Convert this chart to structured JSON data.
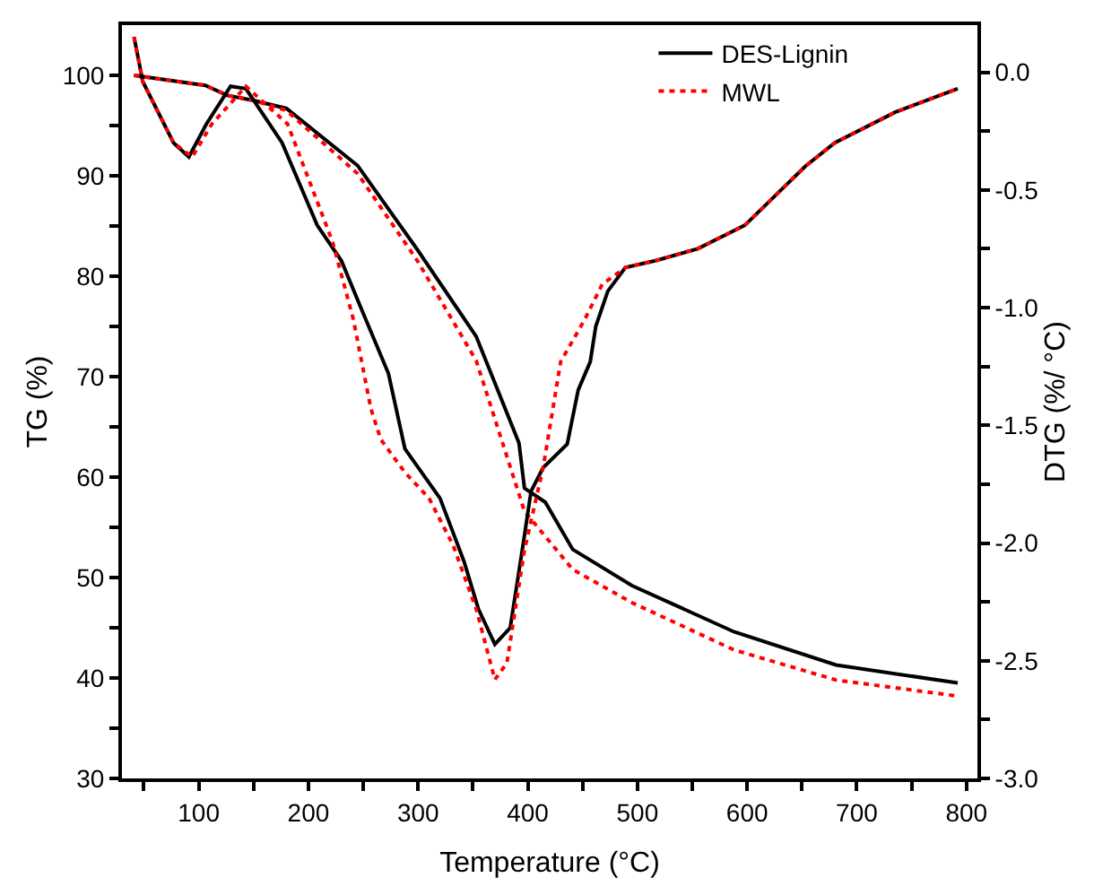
{
  "chart_data": {
    "type": "line",
    "xlabel": "Temperature (°C)",
    "ylabel": "TG (%)",
    "y2label": "DTG (%/ °C)",
    "xlim": [
      30,
      810
    ],
    "ylim": [
      30,
      105
    ],
    "y2lim": [
      -3.0,
      0.2
    ],
    "xticks": [
      {
        "value": 50,
        "label": null
      },
      100,
      {
        "value": 150,
        "label": null
      },
      200,
      {
        "value": 250,
        "label": null
      },
      300,
      {
        "value": 350,
        "label": null
      },
      400,
      {
        "value": 450,
        "label": null
      },
      500,
      {
        "value": 550,
        "label": null
      },
      600,
      {
        "value": 650,
        "label": null
      },
      700,
      {
        "value": 750,
        "label": null
      },
      800
    ],
    "yticks": [
      30,
      {
        "value": 35,
        "label": null
      },
      40,
      {
        "value": 45,
        "label": null
      },
      50,
      {
        "value": 55,
        "label": null
      },
      60,
      {
        "value": 65,
        "label": null
      },
      70,
      {
        "value": 75,
        "label": null
      },
      80,
      {
        "value": 85,
        "label": null
      },
      90,
      {
        "value": 95,
        "label": null
      },
      100
    ],
    "y2ticks": [
      {
        "value": -3.0,
        "label": "-3.0"
      },
      {
        "value": -2.75,
        "label": null
      },
      {
        "value": -2.5,
        "label": "-2.5"
      },
      {
        "value": -2.25,
        "label": null
      },
      {
        "value": -2.0,
        "label": "-2.0"
      },
      {
        "value": -1.75,
        "label": null
      },
      {
        "value": -1.5,
        "label": "-1.5"
      },
      {
        "value": -1.25,
        "label": null
      },
      {
        "value": -1.0,
        "label": "-1.0"
      },
      {
        "value": -0.75,
        "label": null
      },
      {
        "value": -0.5,
        "label": "-0.5"
      },
      {
        "value": -0.25,
        "label": null
      },
      {
        "value": 0.0,
        "label": "0.0"
      }
    ],
    "legend": "top right",
    "marker": "none",
    "series": [
      {
        "name": "DES-Lignin",
        "color": "#000000",
        "line_style": "solid",
        "x": [
          41,
          106,
          126,
          150,
          180,
          245,
          299,
          353,
          392,
          397,
          416,
          441,
          495,
          588,
          681,
          792
        ],
        "values": [
          100,
          99,
          98,
          97.5,
          96.7,
          91,
          82.7,
          74,
          63.4,
          58.9,
          57.5,
          52.8,
          49.2,
          44.6,
          41.3,
          39.5
        ]
      },
      {
        "name": "MWL",
        "color": "#ff0000",
        "line_style": "dotted",
        "x": [
          41,
          106,
          126,
          150,
          180,
          245,
          299,
          353,
          397,
          441,
          495,
          588,
          681,
          792
        ],
        "values": [
          100,
          99,
          98,
          97.5,
          96.5,
          90.2,
          81.6,
          71.6,
          56.6,
          50.8,
          47.5,
          42.8,
          39.8,
          38.2
        ]
      },
      {
        "color": "#000000",
        "line_style": "solid",
        "axis": "y2",
        "x": [
          41,
          49,
          77,
          91,
          107,
          129,
          143,
          176,
          208,
          230,
          246,
          273,
          288,
          320,
          342,
          355,
          370,
          384,
          395,
          403,
          414,
          436,
          446,
          457,
          462,
          473,
          489,
          517,
          555,
          598,
          620,
          653,
          680,
          735,
          792
        ],
        "values": [
          0.15,
          -0.04,
          -0.3,
          -0.36,
          -0.22,
          -0.06,
          -0.07,
          -0.3,
          -0.65,
          -0.8,
          -0.98,
          -1.28,
          -1.6,
          -1.81,
          -2.08,
          -2.28,
          -2.43,
          -2.36,
          -2.03,
          -1.78,
          -1.68,
          -1.58,
          -1.35,
          -1.23,
          -1.08,
          -0.93,
          -0.83,
          -0.8,
          -0.75,
          -0.65,
          -0.55,
          -0.4,
          -0.3,
          -0.17,
          -0.07
        ]
      },
      {
        "color": "#ff0000",
        "line_style": "dotted",
        "axis": "y2",
        "x": [
          41,
          49,
          77,
          94,
          112,
          143,
          181,
          222,
          241,
          257,
          266,
          288,
          310,
          332,
          353,
          370,
          381,
          397,
          414,
          430,
          452,
          468,
          489,
          517,
          555,
          598,
          620,
          653,
          680,
          735,
          792
        ],
        "values": [
          0.15,
          -0.04,
          -0.3,
          -0.36,
          -0.22,
          -0.06,
          -0.22,
          -0.72,
          -1.05,
          -1.43,
          -1.56,
          -1.7,
          -1.81,
          -2.01,
          -2.28,
          -2.58,
          -2.51,
          -2.03,
          -1.68,
          -1.23,
          -1.05,
          -0.9,
          -0.83,
          -0.8,
          -0.75,
          -0.65,
          -0.55,
          -0.4,
          -0.3,
          -0.17,
          -0.07
        ]
      }
    ]
  }
}
